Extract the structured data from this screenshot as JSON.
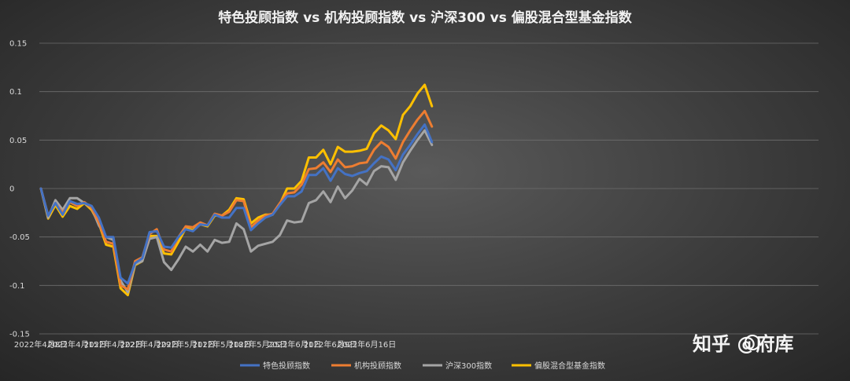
{
  "chart_data": {
    "type": "line",
    "title": "特色投顾指数 vs 机构投顾指数 vs 沪深300 vs 偏股混合型基金指数",
    "xlabel": "",
    "ylabel": "",
    "ylim": [
      -0.15,
      0.15
    ],
    "yticks": [
      "0.15",
      "0.1",
      "0.05",
      "0",
      "-0.05",
      "-0.1",
      "-0.15"
    ],
    "ytick_values": [
      0.15,
      0.1,
      0.05,
      0,
      -0.05,
      -0.1,
      -0.15
    ],
    "xtick_labels": [
      "2022年4月8日",
      "2022年4月15日",
      "2022年4月22日",
      "2022年4月29日",
      "2022年5月11日",
      "2022年5月18日",
      "2022年5月25日",
      "2022年6月1日",
      "2022年6月9日",
      "2022年6月16日"
    ],
    "xtick_index": [
      0,
      5,
      10,
      15,
      20,
      25,
      30,
      35,
      40,
      45
    ],
    "grid": true,
    "legend": "bottom",
    "series": [
      {
        "name": "特色投顾指数",
        "color": "#4472c4",
        "values": [
          0,
          -0.028,
          -0.015,
          -0.027,
          -0.013,
          -0.016,
          -0.015,
          -0.018,
          -0.03,
          -0.05,
          -0.05,
          -0.092,
          -0.098,
          -0.077,
          -0.072,
          -0.045,
          -0.044,
          -0.06,
          -0.061,
          -0.05,
          -0.042,
          -0.044,
          -0.037,
          -0.038,
          -0.027,
          -0.03,
          -0.03,
          -0.02,
          -0.02,
          -0.043,
          -0.036,
          -0.03,
          -0.027,
          -0.017,
          -0.008,
          -0.008,
          -0.003,
          0.014,
          0.014,
          0.021,
          0.008,
          0.021,
          0.015,
          0.013,
          0.016,
          0.018,
          0.026,
          0.033,
          0.03,
          0.019,
          0.035,
          0.045,
          0.056,
          0.066,
          0.048
        ]
      },
      {
        "name": "机构投顾指数",
        "color": "#ed7d31",
        "values": [
          0,
          -0.028,
          -0.015,
          -0.025,
          -0.014,
          -0.018,
          -0.014,
          -0.02,
          -0.035,
          -0.055,
          -0.057,
          -0.1,
          -0.104,
          -0.075,
          -0.071,
          -0.047,
          -0.042,
          -0.063,
          -0.065,
          -0.05,
          -0.039,
          -0.04,
          -0.035,
          -0.038,
          -0.026,
          -0.028,
          -0.024,
          -0.012,
          -0.013,
          -0.04,
          -0.033,
          -0.028,
          -0.026,
          -0.015,
          -0.005,
          -0.004,
          0.004,
          0.02,
          0.021,
          0.027,
          0.017,
          0.03,
          0.022,
          0.023,
          0.026,
          0.027,
          0.04,
          0.048,
          0.043,
          0.031,
          0.048,
          0.06,
          0.071,
          0.08,
          0.064
        ]
      },
      {
        "name": "沪深300指数",
        "color": "#a5a5a5",
        "values": [
          0,
          -0.03,
          -0.012,
          -0.022,
          -0.01,
          -0.01,
          -0.015,
          -0.02,
          -0.038,
          -0.05,
          -0.053,
          -0.095,
          -0.107,
          -0.078,
          -0.075,
          -0.052,
          -0.05,
          -0.076,
          -0.084,
          -0.073,
          -0.06,
          -0.065,
          -0.058,
          -0.065,
          -0.053,
          -0.056,
          -0.055,
          -0.036,
          -0.042,
          -0.065,
          -0.059,
          -0.057,
          -0.055,
          -0.048,
          -0.033,
          -0.035,
          -0.034,
          -0.015,
          -0.012,
          -0.003,
          -0.014,
          0.002,
          -0.01,
          -0.002,
          0.01,
          0.004,
          0.018,
          0.023,
          0.022,
          0.009,
          0.027,
          0.039,
          0.05,
          0.06,
          0.045
        ]
      },
      {
        "name": "偏股混合型基金指数",
        "color": "#ffc000",
        "values": [
          0,
          -0.031,
          -0.017,
          -0.029,
          -0.018,
          -0.021,
          -0.015,
          -0.022,
          -0.036,
          -0.058,
          -0.06,
          -0.103,
          -0.11,
          -0.079,
          -0.075,
          -0.049,
          -0.049,
          -0.067,
          -0.068,
          -0.055,
          -0.041,
          -0.043,
          -0.037,
          -0.039,
          -0.028,
          -0.028,
          -0.022,
          -0.01,
          -0.011,
          -0.036,
          -0.03,
          -0.027,
          -0.027,
          -0.016,
          0,
          0,
          0.008,
          0.032,
          0.032,
          0.04,
          0.025,
          0.043,
          0.038,
          0.038,
          0.039,
          0.041,
          0.057,
          0.065,
          0.06,
          0.051,
          0.076,
          0.085,
          0.098,
          0.107,
          0.085
        ]
      }
    ]
  },
  "watermark": {
    "text": "知乎 @府库"
  }
}
